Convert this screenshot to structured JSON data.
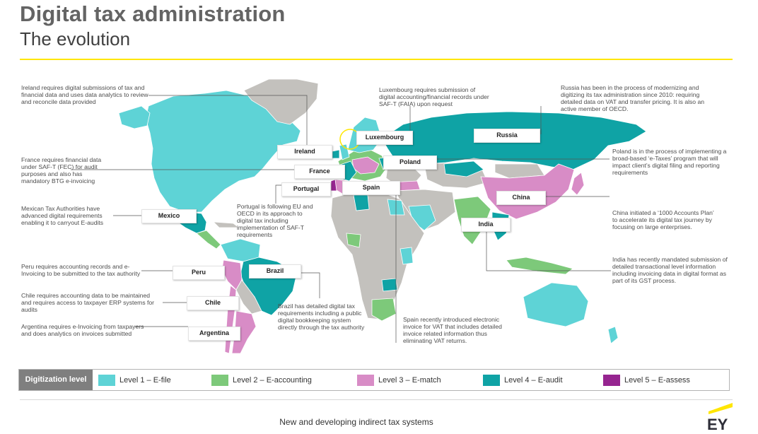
{
  "header": {
    "title": "Digital tax administration",
    "subtitle": "The evolution"
  },
  "colors": {
    "level1": "#5ed3d6",
    "level2": "#7dc97a",
    "level3": "#d88cc6",
    "level4": "#0fa3a5",
    "level5": "#962590",
    "nodata": "#c3c1bd",
    "accent": "#ffe600",
    "legend_title_bg": "#7f7f7f"
  },
  "countries": {
    "ireland": "Ireland",
    "france": "France",
    "portugal": "Portugal",
    "spain": "Spain",
    "luxembourg": "Luxembourg",
    "poland": "Poland",
    "russia": "Russia",
    "china": "China",
    "india": "India",
    "mexico": "Mexico",
    "peru": "Peru",
    "brazil": "Brazil",
    "chile": "Chile",
    "argentina": "Argentina"
  },
  "notes": {
    "ireland": "Ireland requires digital submissions of tax and financial data and uses data analytics to review and reconcile data provided",
    "france": "France requires financial data under SAF-T (FEC) for audit purposes and also has mandatory BTG e-invoicing",
    "mexico": "Mexican Tax Authorities have advanced digital requirements enabling it to carryout E-audits",
    "peru": "Peru requires accounting records and e-Invoicing to be submitted to the tax authority",
    "chile": "Chile requires accounting data to be maintained and requires access to taxpayer ERP systems for audits",
    "argentina": "Argentina requires e-Invoicing from taxpayers and does analytics on invoices submitted",
    "portugal": "Portugal is following EU and OECD in its approach to digital tax including implementation of SAF-T requirements",
    "brazil": "Brazil has detailed digital tax requirements including a public digital bookkeeping system directly through the tax authority",
    "luxembourg": "Luxembourg requires submission of digital accounting/financial records under SAF-T (FAIA) upon request",
    "spain": "Spain recently introduced electronic invoice for VAT that includes detailed invoice related information thus eliminating VAT returns.",
    "russia": "Russia has been in the process of modernizing and digitizing its tax administration since 2010: requiring detailed data on VAT and transfer pricing. It is also an active member of OECD.",
    "poland": "Poland is in the process of implementing a broad-based ‘e-Taxes’ program that will impact client’s digital filing and reporting requirements",
    "china": "China initiated a ‘1000 Accounts Plan’ to accelerate its digital tax journey by focusing on large enterprises.",
    "india": "India has recently mandated submission of detailed transactional level information including invoicing data in digital format as part of its GST process."
  },
  "legend": {
    "title": "Digitization level",
    "items": [
      {
        "label": "Level 1 – E-file",
        "color": "#5ed3d6"
      },
      {
        "label": "Level 2 – E-accounting",
        "color": "#7dc97a"
      },
      {
        "label": "Level 3 – E-match",
        "color": "#d88cc6"
      },
      {
        "label": "Level 4 – E-audit",
        "color": "#0fa3a5"
      },
      {
        "label": "Level 5 – E-assess",
        "color": "#962590"
      }
    ]
  },
  "footer": {
    "text": "New and developing indirect tax systems",
    "logo_text": "EY"
  }
}
